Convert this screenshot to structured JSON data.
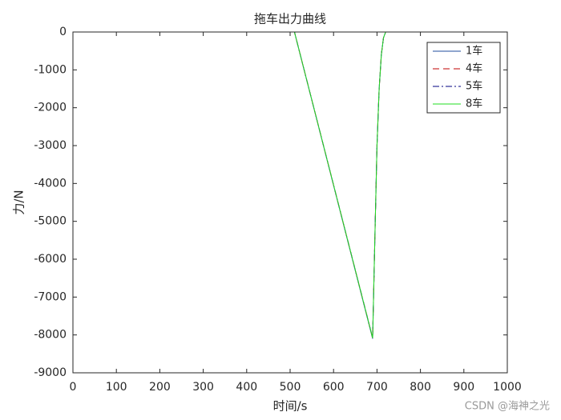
{
  "chart_data": {
    "type": "line",
    "title": "拖车出力曲线",
    "xlabel": "时间/s",
    "ylabel": "力/N",
    "x": [
      0,
      505,
      510,
      690,
      695,
      700,
      705,
      710,
      715,
      720,
      1000
    ],
    "series": [
      {
        "name": "1车",
        "color": "#1f4e9c",
        "style": "solid",
        "values": [
          0,
          0,
          0,
          -8100,
          -5500,
          -3000,
          -1500,
          -600,
          -150,
          0,
          0
        ]
      },
      {
        "name": "4车",
        "color": "#c00000",
        "style": "dashed",
        "values": [
          0,
          0,
          0,
          -8080,
          -5500,
          -3000,
          -1500,
          -600,
          -150,
          0,
          0
        ]
      },
      {
        "name": "5车",
        "color": "#000080",
        "style": "dashdot",
        "values": [
          0,
          0,
          0,
          -8080,
          -5500,
          -3000,
          -1500,
          -600,
          -150,
          0,
          0
        ]
      },
      {
        "name": "8车",
        "color": "#22dd22",
        "style": "solid",
        "values": [
          0,
          0,
          0,
          -8080,
          -5500,
          -3000,
          -1500,
          -600,
          -150,
          0,
          0
        ]
      }
    ],
    "xlim": [
      0,
      1000
    ],
    "xticks": [
      0,
      100,
      200,
      300,
      400,
      500,
      600,
      700,
      800,
      900,
      1000
    ],
    "ylim": [
      -9000,
      0
    ],
    "yticks": [
      -9000,
      -8000,
      -7000,
      -6000,
      -5000,
      -4000,
      -3000,
      -2000,
      -1000,
      0
    ],
    "legend": "northeast",
    "grid": false,
    "watermark": "CSDN @海神之光"
  }
}
